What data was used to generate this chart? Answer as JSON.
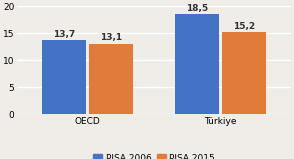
{
  "groups": [
    "OECD",
    "Türkiye"
  ],
  "series": {
    "PISA 2006": [
      13.7,
      18.5
    ],
    "PISA 2015": [
      13.1,
      15.2
    ]
  },
  "bar_colors": {
    "PISA 2006": "#4472c4",
    "PISA 2015": "#e07b39"
  },
  "ylim": [
    0,
    20
  ],
  "yticks": [
    0,
    5,
    10,
    15,
    20
  ],
  "bar_width": 0.28,
  "label_fontsize": 6.5,
  "tick_fontsize": 6.5,
  "legend_fontsize": 6.5,
  "background_color": "#f0ede8",
  "grid_color": "#ffffff",
  "value_labels": {
    "PISA 2006": [
      "13,7",
      "18,5"
    ],
    "PISA 2015": [
      "13,1",
      "15,2"
    ]
  }
}
